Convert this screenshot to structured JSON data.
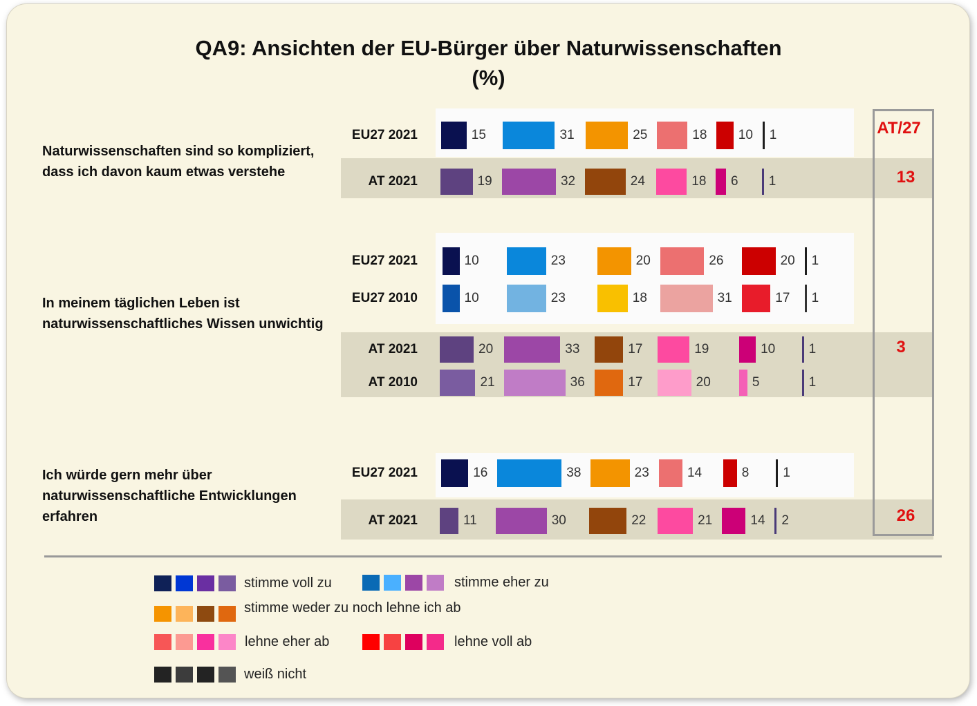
{
  "title_line1": "QA9: Ansichten  der EU-Bürger über  Naturwissenschaften",
  "title_line2": "(%)",
  "ratio_header": "AT/27",
  "chart_data": [
    {
      "type": "bar",
      "question": "Naturwissenschaften sind so kompliziert, dass ich davon kaum etwas verstehe",
      "categories": [
        "stimme voll zu",
        "stimme eher zu",
        "stimme weder zu noch lehne ich ab",
        "lehne eher ab",
        "lehne voll ab",
        "weiß nicht"
      ],
      "series": [
        {
          "name": "EU27  2021",
          "values": [
            15,
            31,
            25,
            18,
            10,
            1
          ]
        },
        {
          "name": "AT 2021",
          "values": [
            19,
            32,
            24,
            18,
            6,
            1
          ]
        }
      ],
      "at_eu_ratio": "13"
    },
    {
      "type": "bar",
      "question": "In meinem täglichen Leben ist naturwissenschaftliches Wissen unwichtig",
      "categories": [
        "stimme voll zu",
        "stimme eher zu",
        "stimme weder zu noch lehne ich ab",
        "lehne eher ab",
        "lehne voll ab",
        "weiß nicht"
      ],
      "series": [
        {
          "name": "EU27  2021",
          "values": [
            10,
            23,
            20,
            26,
            20,
            1
          ]
        },
        {
          "name": "EU27  2010",
          "values": [
            10,
            23,
            18,
            31,
            17,
            1
          ]
        },
        {
          "name": "AT 2021",
          "values": [
            20,
            33,
            17,
            19,
            10,
            1
          ]
        },
        {
          "name": "AT 2010",
          "values": [
            21,
            36,
            17,
            20,
            5,
            1
          ]
        }
      ],
      "at_eu_ratio": "3"
    },
    {
      "type": "bar",
      "question": "Ich würde gern mehr über naturwissenschaftliche Entwicklungen erfahren",
      "categories": [
        "stimme voll zu",
        "stimme eher zu",
        "stimme weder zu noch lehne ich ab",
        "lehne eher ab",
        "lehne voll ab",
        "weiß nicht"
      ],
      "series": [
        {
          "name": "EU27  2021",
          "values": [
            16,
            38,
            23,
            14,
            8,
            1
          ]
        },
        {
          "name": "AT 2021",
          "values": [
            11,
            30,
            22,
            21,
            14,
            2
          ]
        }
      ],
      "at_eu_ratio": "26"
    }
  ],
  "row_colors": {
    "eu2021": [
      "#0a1150",
      "#0a87db",
      "#f39400",
      "#ec7070",
      "#cc0000",
      "#1e1e1e"
    ],
    "eu2010": [
      "#0a53aa",
      "#72b3e1",
      "#f9c000",
      "#eba3a0",
      "#e81c2a",
      "#333333"
    ],
    "at2021": [
      "#5e4280",
      "#9c47a6",
      "#92450c",
      "#fd4aa0",
      "#cc0077",
      "#4a3a78"
    ],
    "at2010": [
      "#7a5ca0",
      "#c07cc6",
      "#e0680f",
      "#fe9cca",
      "#f460b6",
      "#4a3a78"
    ]
  },
  "legend": [
    {
      "label": "stimme voll zu",
      "colors": [
        "#0f2157",
        "#0037d4",
        "#6a2fa2",
        "#7a5ca0"
      ]
    },
    {
      "label": "stimme eher zu",
      "colors": [
        "#0a6ab5",
        "#4ab0ff",
        "#9c47a6",
        "#c07cc6"
      ]
    },
    {
      "label": "stimme weder zu noch lehne ich ab",
      "colors": [
        "#f59400",
        "#fdb45a",
        "#8e4a10",
        "#e0680f"
      ]
    },
    {
      "label": "lehne eher ab",
      "colors": [
        "#f75656",
        "#fc9a92",
        "#f9309e",
        "#fc86c8"
      ]
    },
    {
      "label": "lehne voll ab",
      "colors": [
        "#ff0000",
        "#f74242",
        "#de005e",
        "#f42a8a"
      ]
    },
    {
      "label": "weiß nicht",
      "colors": [
        "#232323",
        "#3c3c3c",
        "#232323",
        "#545454"
      ]
    }
  ]
}
